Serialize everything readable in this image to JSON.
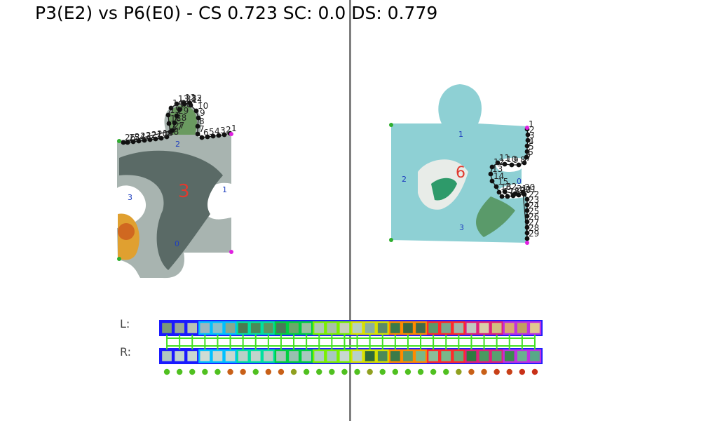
{
  "title": "P3(E2) vs P6(E0) - CS 0.723 SC: 0.0 DS: 0.779",
  "colors": {
    "divider": "#7f7f7f",
    "edge_label": "#1f3fbf",
    "piece_label": "#e03a2f",
    "contour": "#111111",
    "corner_start": "#2fae2f",
    "corner_end": "#e020e0",
    "strip_border_palette": [
      "#1a1aff",
      "#00c0ff",
      "#00e0a0",
      "#00d040",
      "#7af000",
      "#d8e000",
      "#ff8a00",
      "#ff2a2a",
      "#e0207a",
      "#c030e0"
    ],
    "match_line": "#40e020"
  },
  "left_piece": {
    "id": "3",
    "edge_labels": [
      "0",
      "1",
      "2",
      "3"
    ],
    "contour_point_labels": [
      "1",
      "2",
      "3",
      "4",
      "5",
      "6",
      "7",
      "8",
      "9",
      "10",
      "11",
      "12",
      "13",
      "14",
      "15",
      "16",
      "17",
      "18",
      "19",
      "20",
      "21",
      "22",
      "23",
      "24",
      "25",
      "26",
      "27",
      "28",
      "29",
      "30",
      "31",
      "32"
    ]
  },
  "right_piece": {
    "id": "6",
    "edge_labels": [
      "0",
      "1",
      "2",
      "3"
    ],
    "contour_point_labels": [
      "1",
      "2",
      "3",
      "4",
      "5",
      "6",
      "7",
      "8",
      "9",
      "10",
      "11",
      "12",
      "13",
      "14",
      "15",
      "16",
      "17",
      "18",
      "19",
      "20",
      "21",
      "22",
      "23",
      "24",
      "25",
      "26",
      "27",
      "28",
      "29",
      "30",
      "31",
      "32"
    ]
  },
  "strip": {
    "left_label": "L:",
    "right_label": "R:",
    "left_swatches": [
      "#7a9a78",
      "#98a896",
      "#b8c2b4",
      "#9cb8c0",
      "#8cc0c8",
      "#88a890",
      "#4a7a50",
      "#4a8a58",
      "#5c9860",
      "#4a7a58",
      "#6aa86a",
      "#9ac0a0",
      "#b0c8b4",
      "#a8c0a8",
      "#c8d0bc",
      "#b8d0c0",
      "#8ab0a0",
      "#5a8a68",
      "#3a7a48",
      "#3a6840",
      "#406a48",
      "#5a9868",
      "#7aa88a",
      "#a0b8a8",
      "#c0c8c0",
      "#d8d0a8",
      "#d0c080",
      "#d8a870",
      "#c0a060",
      "#e0c890"
    ],
    "right_swatches": [
      "#b0c8c0",
      "#c0d4cc",
      "#c8d8d0",
      "#d0dcd4",
      "#c8d8d0",
      "#c8d8d0",
      "#b8d0c8",
      "#c0d4cc",
      "#b8ccc4",
      "#a8c4b8",
      "#98c0b0",
      "#a8c8c0",
      "#b0ccc4",
      "#a8c8c0",
      "#c8d8d0",
      "#b8d0c8",
      "#2e6a3a",
      "#4a8a58",
      "#3a7a48",
      "#5a9868",
      "#7ab888",
      "#8abc98",
      "#7ab88a",
      "#6aa878",
      "#2e7a40",
      "#4a9a60",
      "#58a070",
      "#3a8a50",
      "#6ab090",
      "#58a888"
    ],
    "score_dot_colors": [
      "#50c020",
      "#50c020",
      "#50c020",
      "#50c020",
      "#50c020",
      "#c86018",
      "#c86018",
      "#50c020",
      "#c86018",
      "#c86018",
      "#90a020",
      "#50c020",
      "#50c020",
      "#50c020",
      "#50c020",
      "#50c020",
      "#90a020",
      "#50c020",
      "#50c020",
      "#50c020",
      "#50c020",
      "#50c020",
      "#50c020",
      "#90a020",
      "#c86018",
      "#c86018",
      "#c84018",
      "#c84018",
      "#c83018",
      "#c83018"
    ]
  }
}
